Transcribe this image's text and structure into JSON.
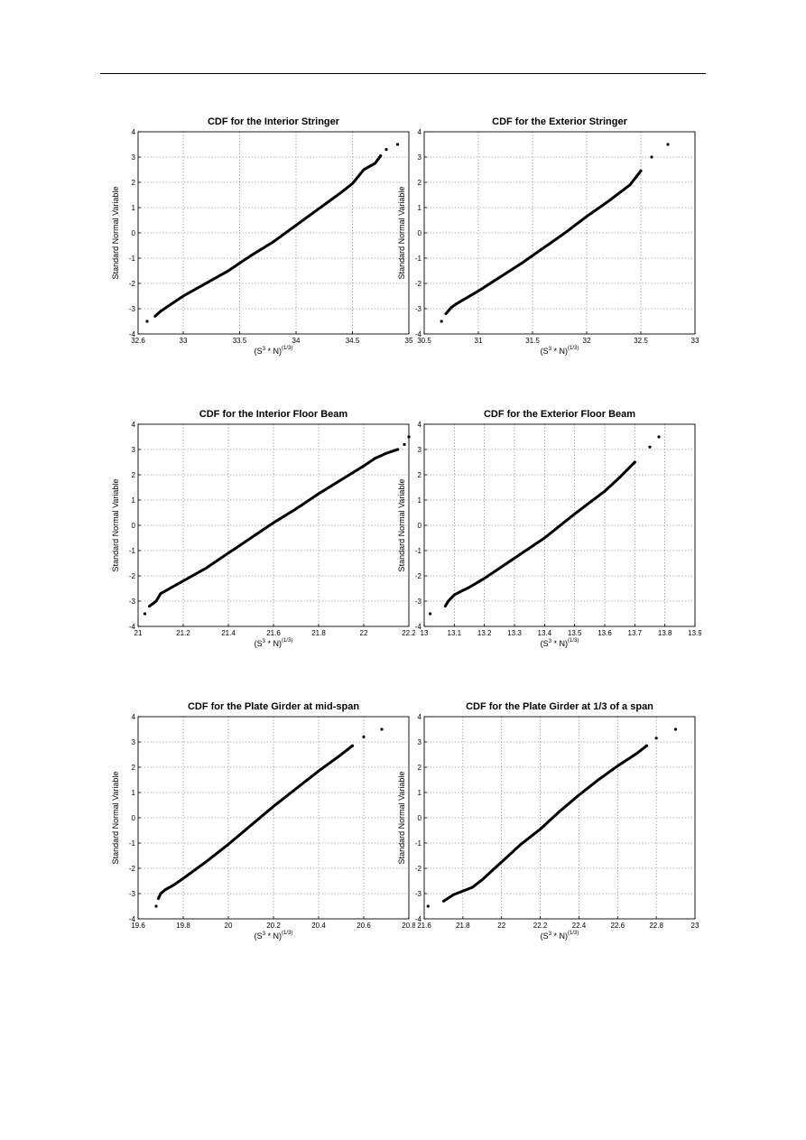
{
  "chart_data": [
    {
      "type": "scatter",
      "title": "CDF for the Interior Stringer",
      "xlabel": "(S",
      "xlabel_sup1": "3",
      "xlabel_mid": " * N)",
      "xlabel_sup2": "(1/3)",
      "ylabel": "Standard Normal Variable",
      "xlim": [
        32.6,
        35
      ],
      "ylim": [
        -4,
        4
      ],
      "xticks": [
        "32.6",
        "33",
        "33.5",
        "34",
        "34.5",
        "35"
      ],
      "yticks": [
        "-4",
        "-3",
        "-2",
        "-1",
        "0",
        "1",
        "2",
        "3",
        "4"
      ],
      "grid": true,
      "x": [
        32.68,
        32.75,
        32.8,
        32.85,
        32.9,
        33.0,
        33.2,
        33.4,
        33.6,
        33.8,
        34.0,
        34.2,
        34.4,
        34.5,
        34.6,
        34.7,
        34.75,
        34.8,
        34.9
      ],
      "y": [
        -3.5,
        -3.3,
        -3.1,
        -2.95,
        -2.8,
        -2.5,
        -2.0,
        -1.5,
        -0.9,
        -0.35,
        0.3,
        0.95,
        1.6,
        1.95,
        2.5,
        2.75,
        3.05,
        3.3,
        3.5
      ]
    },
    {
      "type": "scatter",
      "title": "CDF for the Exterior Stringer",
      "xlabel": "(S",
      "xlabel_sup1": "3",
      "xlabel_mid": " * N)",
      "xlabel_sup2": "(1/3)",
      "ylabel": "Standard Normal Variable",
      "xlim": [
        30.5,
        33
      ],
      "ylim": [
        -4,
        4
      ],
      "xticks": [
        "30.5",
        "31",
        "31.5",
        "32",
        "32.5",
        "33"
      ],
      "yticks": [
        "-4",
        "-3",
        "-2",
        "-1",
        "0",
        "1",
        "2",
        "3",
        "4"
      ],
      "grid": true,
      "x": [
        30.66,
        30.7,
        30.75,
        30.8,
        30.9,
        31.0,
        31.2,
        31.4,
        31.6,
        31.8,
        32.0,
        32.2,
        32.4,
        32.5,
        32.6,
        32.75
      ],
      "y": [
        -3.5,
        -3.2,
        -2.95,
        -2.8,
        -2.55,
        -2.3,
        -1.75,
        -1.2,
        -0.6,
        0.0,
        0.65,
        1.25,
        1.9,
        2.45,
        3.0,
        3.5
      ]
    },
    {
      "type": "scatter",
      "title": "CDF for the Interior Floor Beam",
      "xlabel": "(S",
      "xlabel_sup1": "3",
      "xlabel_mid": " * N)",
      "xlabel_sup2": "(1/3)",
      "ylabel": "Standard Normal Variable",
      "xlim": [
        21,
        22.2
      ],
      "ylim": [
        -4,
        4
      ],
      "xticks": [
        "21",
        "21.2",
        "21.4",
        "21.6",
        "21.8",
        "22",
        "22.2"
      ],
      "yticks": [
        "-4",
        "-3",
        "-2",
        "-1",
        "0",
        "1",
        "2",
        "3",
        "4"
      ],
      "grid": true,
      "x": [
        21.03,
        21.05,
        21.08,
        21.1,
        21.15,
        21.2,
        21.3,
        21.4,
        21.5,
        21.6,
        21.7,
        21.8,
        21.9,
        22.0,
        22.05,
        22.1,
        22.15,
        22.18,
        22.2
      ],
      "y": [
        -3.5,
        -3.2,
        -3.0,
        -2.7,
        -2.45,
        -2.2,
        -1.7,
        -1.1,
        -0.5,
        0.1,
        0.65,
        1.25,
        1.8,
        2.35,
        2.65,
        2.85,
        3.0,
        3.2,
        3.5
      ]
    },
    {
      "type": "scatter",
      "title": "CDF for the Exterior Floor Beam",
      "xlabel": "(S",
      "xlabel_sup1": "3",
      "xlabel_mid": " * N)",
      "xlabel_sup2": "(1/3)",
      "ylabel": "Standard Normal Variable",
      "xlim": [
        13,
        13.9
      ],
      "ylim": [
        -4,
        4
      ],
      "xticks": [
        "13",
        "13.1",
        "13.2",
        "13.3",
        "13.4",
        "13.5",
        "13.6",
        "13.7",
        "13.8",
        "13.9"
      ],
      "yticks": [
        "-4",
        "-3",
        "-2",
        "-1",
        "0",
        "1",
        "2",
        "3",
        "4"
      ],
      "grid": true,
      "x": [
        13.02,
        13.07,
        13.08,
        13.1,
        13.15,
        13.2,
        13.3,
        13.4,
        13.5,
        13.6,
        13.65,
        13.7,
        13.75,
        13.78
      ],
      "y": [
        -3.5,
        -3.2,
        -3.0,
        -2.75,
        -2.45,
        -2.1,
        -1.3,
        -0.5,
        0.45,
        1.35,
        1.9,
        2.5,
        3.1,
        3.5
      ]
    },
    {
      "type": "scatter",
      "title": "CDF for the Plate Girder at mid-span",
      "xlabel": "(S",
      "xlabel_sup1": "3",
      "xlabel_mid": " * N)",
      "xlabel_sup2": "(1/3)",
      "ylabel": "Standard Normal Variable",
      "xlim": [
        19.6,
        20.8
      ],
      "ylim": [
        -4,
        4
      ],
      "xticks": [
        "19.6",
        "19.8",
        "20",
        "20.2",
        "20.4",
        "20.6",
        "20.8"
      ],
      "yticks": [
        "-4",
        "-3",
        "-2",
        "-1",
        "0",
        "1",
        "2",
        "3",
        "4"
      ],
      "grid": true,
      "x": [
        19.68,
        19.69,
        19.7,
        19.72,
        19.76,
        19.8,
        19.9,
        20.0,
        20.1,
        20.2,
        20.3,
        20.4,
        20.5,
        20.55,
        20.6,
        20.68
      ],
      "y": [
        -3.5,
        -3.2,
        -3.0,
        -2.85,
        -2.65,
        -2.4,
        -1.75,
        -1.05,
        -0.3,
        0.45,
        1.15,
        1.85,
        2.5,
        2.85,
        3.2,
        3.5
      ]
    },
    {
      "type": "scatter",
      "title": "CDF for the Plate Girder at 1/3 of a span",
      "xlabel": "(S",
      "xlabel_sup1": "3",
      "xlabel_mid": " * N)",
      "xlabel_sup2": "(1/3)",
      "ylabel": "Standard Normal Variable",
      "xlim": [
        21.6,
        23
      ],
      "ylim": [
        -4,
        4
      ],
      "xticks": [
        "21.6",
        "21.8",
        "22",
        "22.2",
        "22.4",
        "22.6",
        "22.8",
        "23"
      ],
      "yticks": [
        "-4",
        "-3",
        "-2",
        "-1",
        "0",
        "1",
        "2",
        "3",
        "4"
      ],
      "grid": true,
      "x": [
        21.62,
        21.7,
        21.75,
        21.8,
        21.85,
        21.9,
        22.0,
        22.1,
        22.2,
        22.3,
        22.4,
        22.5,
        22.6,
        22.7,
        22.75,
        22.8,
        22.9
      ],
      "y": [
        -3.5,
        -3.3,
        -3.05,
        -2.9,
        -2.75,
        -2.45,
        -1.75,
        -1.05,
        -0.45,
        0.25,
        0.9,
        1.5,
        2.05,
        2.55,
        2.85,
        3.15,
        3.5
      ]
    }
  ]
}
